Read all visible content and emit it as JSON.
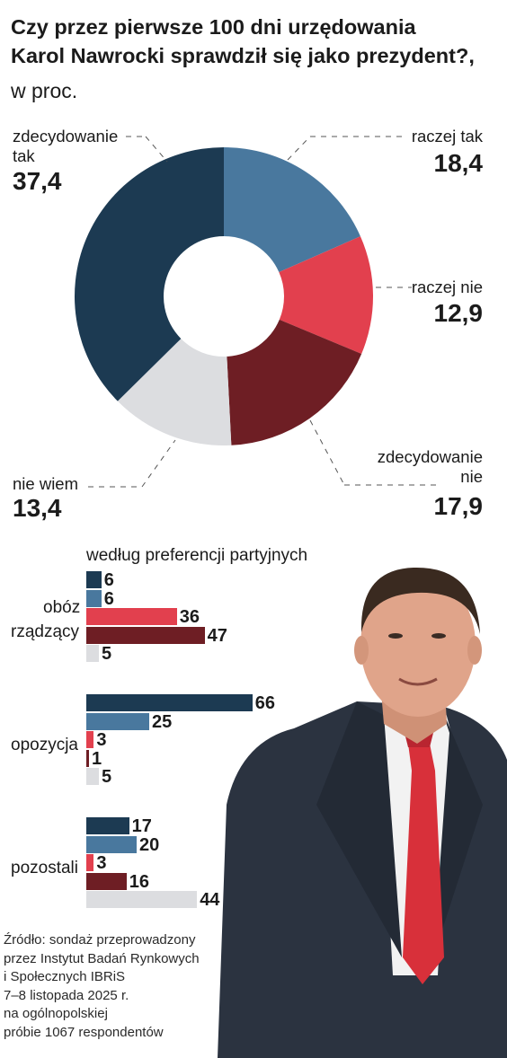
{
  "header": {
    "title_lines": [
      "Czy przez pierwsze 100 dni urzędowania",
      "Karol Nawrocki sprawdził się jako prezydent?,"
    ],
    "subtitle": "w proc."
  },
  "chart_data": [
    {
      "type": "pie",
      "title": "Czy przez pierwsze 100 dni urzędowania Karol Nawrocki sprawdził się jako prezydent?, w proc.",
      "categories": [
        "raczej tak",
        "raczej nie",
        "zdecydowanie nie",
        "nie wiem",
        "zdecydowanie tak"
      ],
      "values": [
        18.4,
        12.9,
        17.9,
        13.4,
        37.4
      ],
      "value_labels": [
        "18,4",
        "12,9",
        "17,9",
        "13,4",
        "37,4"
      ],
      "colors": [
        "#49789e",
        "#e2404e",
        "#6e1e24",
        "#dcdde0",
        "#1c3a52"
      ],
      "donut": true,
      "labels": {
        "zdecydowanie_tak_lines": [
          "zdecydowanie",
          "tak"
        ],
        "raczej_tak": "raczej tak",
        "raczej_nie": "raczej nie",
        "zdecydowanie_nie_lines": [
          "zdecydowanie",
          "nie"
        ],
        "nie_wiem": "nie wiem"
      }
    },
    {
      "type": "bar",
      "orientation": "horizontal",
      "title": "według preferencji partyjnych",
      "categories": [
        "zdecydowanie tak",
        "raczej tak",
        "raczej nie",
        "zdecydowanie nie",
        "nie wiem"
      ],
      "colors": [
        "#1c3a52",
        "#49789e",
        "#e2404e",
        "#6e1e24",
        "#dcdde0"
      ],
      "groups": [
        {
          "label_lines": [
            "obóz",
            "rządzący"
          ],
          "values": [
            6,
            6,
            36,
            47,
            5
          ]
        },
        {
          "label_lines": [
            "opozycja"
          ],
          "values": [
            66,
            25,
            3,
            1,
            5
          ]
        },
        {
          "label_lines": [
            "pozostali"
          ],
          "values": [
            17,
            20,
            3,
            16,
            44
          ]
        }
      ]
    }
  ],
  "source": {
    "lines": [
      "Źródło: sondaż przeprowadzony",
      "przez Instytut Badań Rynkowych",
      "i Społecznych IBRiS",
      "7–8 listopada 2025 r.",
      "na ogólnopolskiej",
      "próbie 1067 respondentów"
    ]
  },
  "colors": {
    "skin": "#e0a48a",
    "hair": "#3a2a20",
    "suit": "#2b3340",
    "shirt": "#f2f2f2",
    "tie": "#d8303a"
  }
}
